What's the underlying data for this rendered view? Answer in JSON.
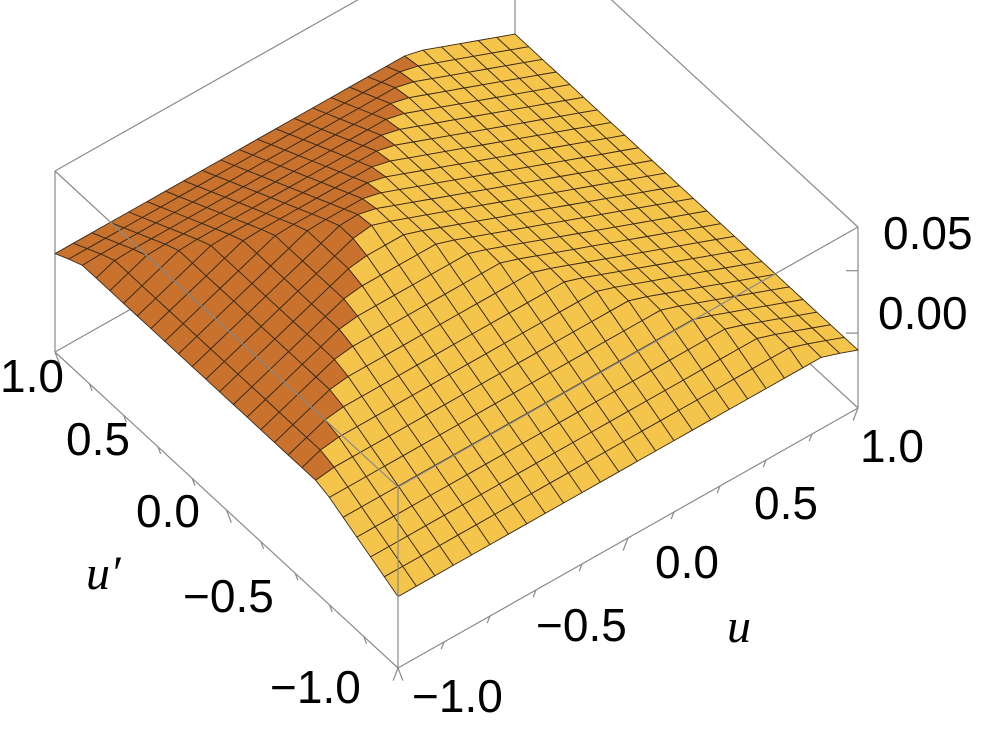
{
  "chart_data": {
    "type": "surface3d",
    "title": "",
    "xlabel": "u",
    "ylabel": "u′",
    "zlabel": "",
    "xlim": [
      -1.0,
      1.0
    ],
    "ylim": [
      -1.0,
      1.0
    ],
    "zlim": [
      -0.06,
      0.085
    ],
    "x_ticks": [
      "−1.0",
      "−0.5",
      "0.0",
      "0.5",
      "1.0"
    ],
    "x_tick_values": [
      -1.0,
      -0.5,
      0.0,
      0.5,
      1.0
    ],
    "y_ticks": [
      "−1.0",
      "−0.5",
      "0.0",
      "0.5",
      "1.0"
    ],
    "y_tick_values": [
      -1.0,
      -0.5,
      0.0,
      0.5,
      1.0
    ],
    "z_ticks": [
      "0.00",
      "0.05"
    ],
    "z_tick_values": [
      0.0,
      0.05
    ],
    "surface": {
      "description_formula": "z = a - b*max(|u - u0|, |u' - u0'|)",
      "apex_u": -0.3,
      "apex_uprime": 0.15,
      "apex_z": 0.08,
      "slope": 0.072,
      "grid_points": 26
    },
    "colors": {
      "light_face": "#f5c44a",
      "dark_face": "#c8722e",
      "mesh": "#3a2a18",
      "box": "#8a8a8a"
    }
  }
}
